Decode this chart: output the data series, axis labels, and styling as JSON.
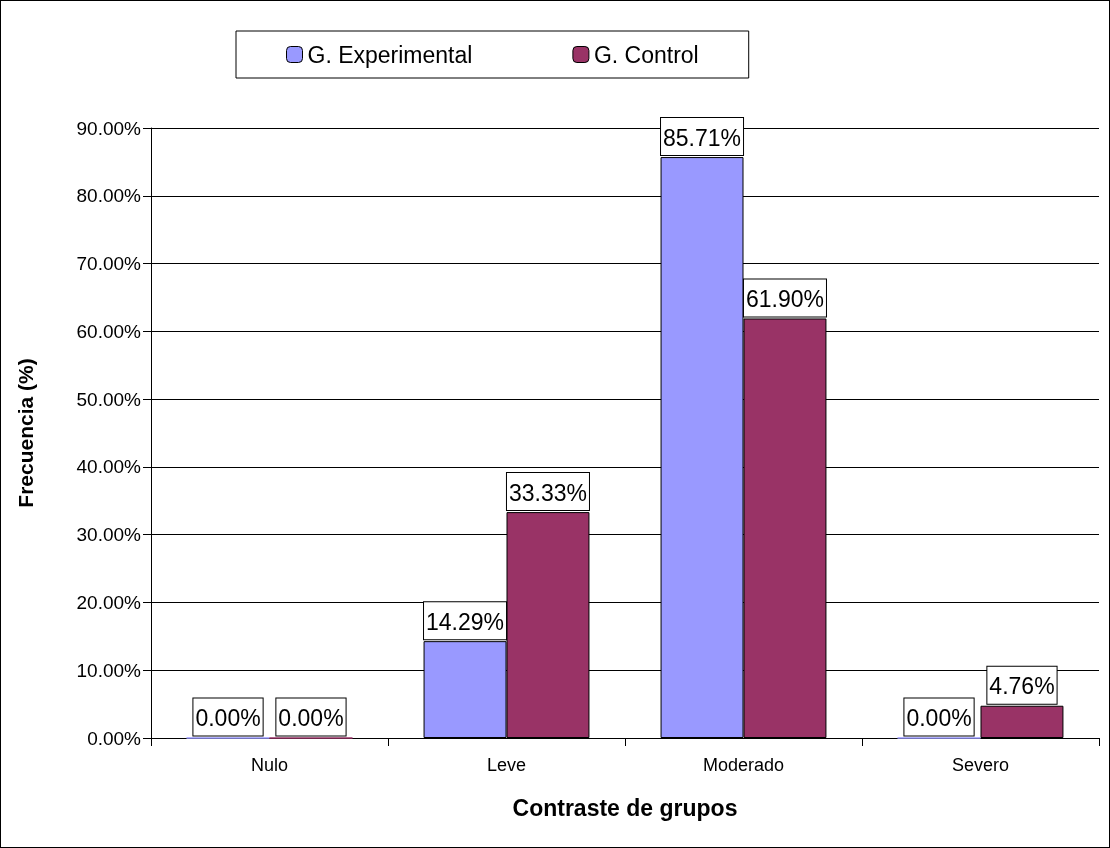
{
  "chart_data": {
    "type": "bar",
    "xlabel": "Contraste de grupos",
    "ylabel": "Frecuencia (%)",
    "categories": [
      "Nulo",
      "Leve",
      "Moderado",
      "Severo"
    ],
    "series": [
      {
        "name": "G. Experimental",
        "color": "#9999ff",
        "values": [
          0,
          14.29,
          85.71,
          0
        ],
        "value_labels": [
          "0.00%",
          "14.29%",
          "85.71%",
          "0.00%"
        ]
      },
      {
        "name": "G. Control",
        "color": "#993366",
        "values": [
          0,
          33.33,
          61.9,
          4.76
        ],
        "value_labels": [
          "0.00%",
          "33.33%",
          "61.90%",
          "4.76%"
        ]
      }
    ],
    "ylim": [
      0,
      90
    ],
    "yticks": [
      {
        "value": 0,
        "label": "0.00%"
      },
      {
        "value": 10,
        "label": "10.00%"
      },
      {
        "value": 20,
        "label": "20.00%"
      },
      {
        "value": 30,
        "label": "30.00%"
      },
      {
        "value": 40,
        "label": "40.00%"
      },
      {
        "value": 50,
        "label": "50.00%"
      },
      {
        "value": 60,
        "label": "60.00%"
      },
      {
        "value": 70,
        "label": "70.00%"
      },
      {
        "value": 80,
        "label": "80.00%"
      },
      {
        "value": 90,
        "label": "90.00%"
      }
    ],
    "grid": "y",
    "legend": "top"
  }
}
